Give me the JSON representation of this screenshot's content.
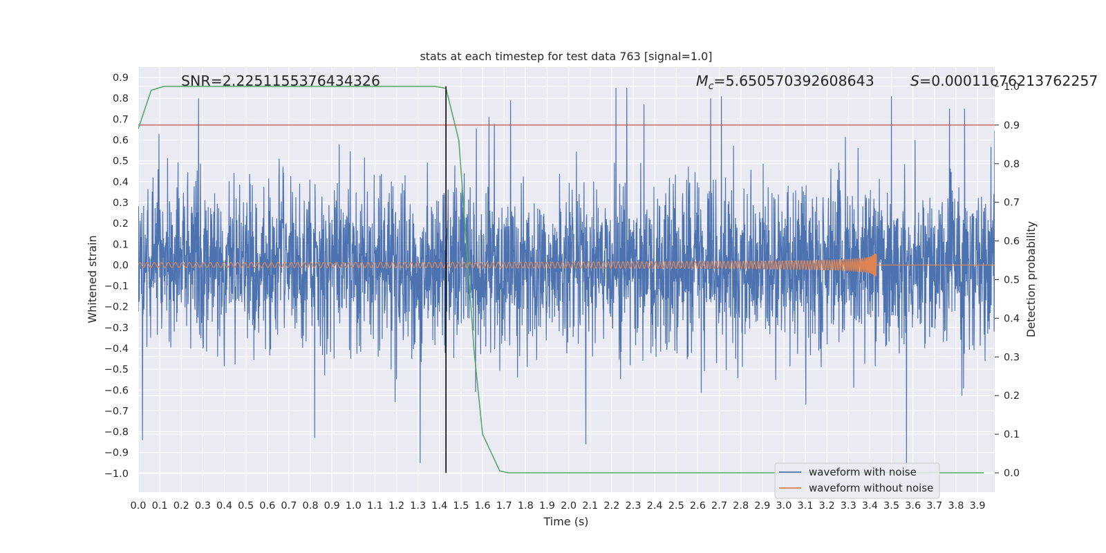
{
  "chart_data": {
    "type": "line",
    "title": "stats at each timestep for test data 763 [signal=1.0]",
    "xlabel": "Time (s)",
    "ylabel": "Whitened strain",
    "y2label": "Detection probability",
    "xlim": [
      0.0,
      3.98
    ],
    "ylim": [
      -1.09,
      0.95
    ],
    "y2lim": [
      -0.05,
      1.05
    ],
    "xticks": [
      "0.0",
      "0.1",
      "0.2",
      "0.3",
      "0.4",
      "0.5",
      "0.6",
      "0.7",
      "0.8",
      "0.9",
      "1.0",
      "1.1",
      "1.2",
      "1.3",
      "1.4",
      "1.5",
      "1.6",
      "1.7",
      "1.8",
      "1.9",
      "2.0",
      "2.1",
      "2.2",
      "2.3",
      "2.4",
      "2.5",
      "2.6",
      "2.7",
      "2.8",
      "2.9",
      "3.0",
      "3.1",
      "3.2",
      "3.3",
      "3.4",
      "3.5",
      "3.6",
      "3.7",
      "3.8",
      "3.9"
    ],
    "yticks": [
      "0.9",
      "0.8",
      "0.7",
      "0.6",
      "0.5",
      "0.4",
      "0.3",
      "0.2",
      "0.1",
      "0.0",
      "−0.1",
      "−0.2",
      "−0.3",
      "−0.4",
      "−0.5",
      "−0.6",
      "−0.7",
      "−0.8",
      "−0.9",
      "−1.0"
    ],
    "y2ticks": [
      "1.0",
      "0.9",
      "0.8",
      "0.7",
      "0.6",
      "0.5",
      "0.4",
      "0.3",
      "0.2",
      "0.1",
      "0.0"
    ],
    "annotations": {
      "snr": "SNR=2.2251155376434326",
      "mc_symbol": "M",
      "mc_sub": "c",
      "mc_value": "=5.650570392608643",
      "s_symbol": "S",
      "s_value": "=0.00011676213762257"
    },
    "threshold": {
      "value": 0.9,
      "color": "#c44e52",
      "axis": "right"
    },
    "marker_time": 1.43,
    "series": [
      {
        "name": "waveform with noise",
        "color": "#4c72b0",
        "axis": "left",
        "kind": "noise",
        "sample_rate": 800,
        "std": 0.2,
        "spikes": [
          [
            0.02,
            -0.84
          ],
          [
            0.28,
            0.8
          ],
          [
            0.82,
            -0.83
          ],
          [
            1.31,
            -0.95
          ],
          [
            1.63,
            0.71
          ],
          [
            1.73,
            0.79
          ],
          [
            2.08,
            -0.86
          ],
          [
            2.22,
            0.85
          ],
          [
            2.27,
            0.85
          ],
          [
            2.35,
            0.77
          ],
          [
            2.66,
            0.8
          ],
          [
            2.71,
            0.81
          ],
          [
            3.5,
            0.81
          ],
          [
            3.57,
            -0.96
          ],
          [
            3.77,
            0.75
          ],
          [
            3.84,
            0.75
          ]
        ]
      },
      {
        "name": "waveform without noise",
        "color": "#dd8452",
        "axis": "left",
        "kind": "chirp",
        "f_start": 30,
        "t_merge": 3.43,
        "amp_start": 0.012,
        "amp_end": 0.055
      },
      {
        "name": "Detection probability",
        "color": "#55a868",
        "axis": "right",
        "kind": "line",
        "x": [
          0.0,
          0.06,
          0.12,
          0.25,
          0.5,
          0.75,
          1.0,
          1.25,
          1.38,
          1.43,
          1.49,
          1.55,
          1.56,
          1.6,
          1.68,
          1.72,
          1.85,
          2.0,
          2.5,
          3.0,
          3.5,
          3.93
        ],
        "y": [
          0.89,
          0.99,
          1.0,
          1.0,
          1.0,
          1.0,
          1.0,
          1.0,
          1.0,
          0.995,
          0.86,
          0.4,
          0.32,
          0.1,
          0.005,
          0.0,
          0.0,
          0.0,
          0.0,
          0.0,
          0.0,
          0.0
        ]
      }
    ],
    "legend": {
      "position": "lower-right",
      "entries": [
        "waveform with noise",
        "waveform without noise"
      ]
    },
    "grid": true
  }
}
